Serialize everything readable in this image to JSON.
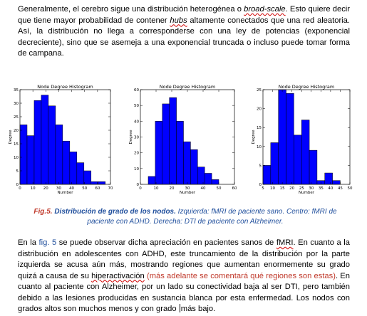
{
  "paragraph1": {
    "part_a": "Generalmente, el cerebro sigue una distribución heterogénea o ",
    "term_a": "broad-scale",
    "part_b": ". Esto quiere decir que tiene mayor probabilidad de contener ",
    "term_b": "hubs",
    "part_c": " altamente conectados que una red aleatoria. Así, la distribución no llega a corresponderse con una ley de potencias (exponencial decreciente), sino que se asemeja a una exponencial truncada o incluso puede tomar forma de campana."
  },
  "caption": {
    "label": "Fig.5.",
    "title": " Distribución de grado de los nodos.",
    "rest": " Izquierda: fMRI de paciente sano. Centro: fMRI de paciente con ADHD. Derecha: DTI de paciente con Alzheimer."
  },
  "paragraph2": {
    "part_a": "En la ",
    "fig_ref": "fig. 5",
    "part_b": " se puede observar dicha apreciación en pacientes sanos de ",
    "term_fmri": "fMRI",
    "part_c": ". En cuanto a la distribución en adolescentes con ADHD, este truncamiento de la distribución por la parte izquierda se acusa aún más, mostrando regiones que aumentan enormemente su grado quizá a causa de su ",
    "term_hyper": "hiperactivación",
    "note": " (más adelante se comentará qué regiones son estas)",
    "part_d": ". En cuanto al paciente con Alzheimer, por un lado su conectividad baja al ser DTI, pero también debido a las lesiones producidas en sustancia blanca por esta enfermedad. Los nodos con grados altos son muchos menos y con grado ",
    "part_e": "más bajo."
  },
  "chart_data": [
    {
      "type": "bar",
      "title": "Node Degree Histogram",
      "xlabel": "Number",
      "ylabel": "Degree",
      "xlim": [
        0,
        70
      ],
      "ylim": [
        0,
        35
      ],
      "xticks": [
        0,
        10,
        20,
        30,
        40,
        50,
        60,
        70
      ],
      "yticks": [
        0,
        5,
        10,
        15,
        20,
        25,
        30,
        35
      ],
      "bin_width": 5.5,
      "bin_starts": [
        0,
        5.5,
        11,
        16.5,
        22,
        27.5,
        33,
        38.5,
        44,
        49.5,
        55,
        60.5
      ],
      "values": [
        22,
        18,
        31,
        33,
        29,
        22,
        16,
        12,
        8,
        5,
        1,
        1
      ],
      "color": "#0000ff"
    },
    {
      "type": "bar",
      "title": "Node Degree Histogram",
      "xlabel": "Number",
      "ylabel": "Degree",
      "xlim": [
        0,
        60
      ],
      "ylim": [
        0,
        60
      ],
      "xticks": [
        0,
        10,
        20,
        30,
        40,
        50,
        60
      ],
      "yticks": [
        0,
        10,
        20,
        30,
        40,
        50,
        60
      ],
      "bin_width": 4.5,
      "bin_starts": [
        5,
        9.5,
        14,
        18.5,
        23,
        27.5,
        32,
        36.5,
        41,
        45.5
      ],
      "values": [
        5,
        40,
        51,
        55,
        40,
        27,
        22,
        11,
        7,
        3
      ],
      "color": "#0000ff"
    },
    {
      "type": "bar",
      "title": "Node Degree Histogram",
      "xlabel": "Number",
      "ylabel": "Degree",
      "xlim": [
        5,
        50
      ],
      "ylim": [
        0,
        25
      ],
      "xticks": [
        5,
        10,
        15,
        20,
        25,
        30,
        35,
        40,
        45,
        50
      ],
      "yticks": [
        0,
        5,
        10,
        15,
        20,
        25
      ],
      "bin_width": 4,
      "bin_starts": [
        5,
        9,
        13,
        17,
        21,
        25,
        29,
        33,
        37,
        41,
        45
      ],
      "values": [
        5,
        11,
        25,
        24,
        13,
        17,
        9,
        1,
        3,
        1,
        0
      ],
      "color": "#0000ff"
    }
  ]
}
